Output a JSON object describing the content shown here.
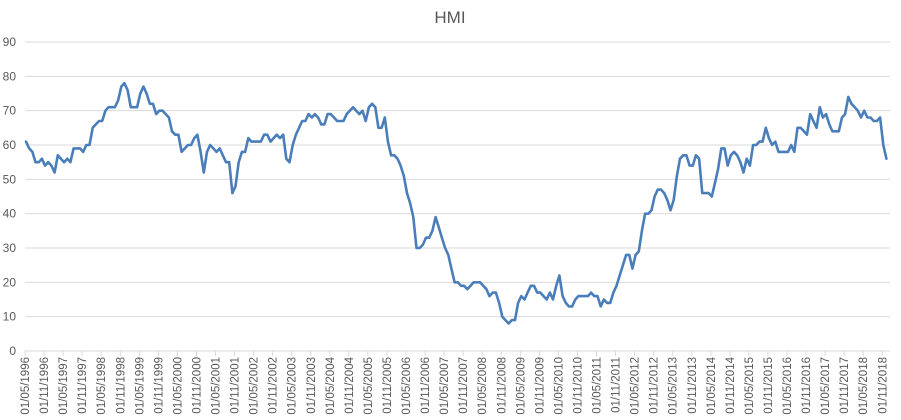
{
  "chart_data": {
    "type": "line",
    "title": "HMI",
    "xlabel": "",
    "ylabel": "",
    "ylim": [
      0,
      90
    ],
    "y_ticks": [
      0,
      10,
      20,
      30,
      40,
      50,
      60,
      70,
      80,
      90
    ],
    "grid": "horizontal",
    "legend": "none",
    "x_interval": "month",
    "x_tick_step_months": 6,
    "x_tick_labels": [
      "01/05/1996",
      "01/11/1996",
      "01/05/1997",
      "01/11/1997",
      "01/05/1998",
      "01/11/1998",
      "01/05/1999",
      "01/11/1999",
      "01/05/2000",
      "01/11/2000",
      "01/05/2001",
      "01/11/2001",
      "01/05/2002",
      "01/11/2002",
      "01/05/2003",
      "01/11/2003",
      "01/05/2004",
      "01/11/2004",
      "01/05/2005",
      "01/11/2005",
      "01/05/2006",
      "01/11/2006",
      "01/05/2007",
      "01/11/2007",
      "01/05/2008",
      "01/11/2008",
      "01/05/2009",
      "01/11/2009",
      "01/05/2010",
      "01/11/2010",
      "01/05/2011",
      "01/11/2011",
      "01/05/2012",
      "01/11/2012",
      "01/05/2013",
      "01/11/2013",
      "01/05/2014",
      "01/11/2014",
      "01/05/2015",
      "01/11/2015",
      "01/05/2016",
      "01/11/2016",
      "01/05/2017",
      "01/11/2017",
      "01/05/2018",
      "01/11/2018"
    ],
    "series": [
      {
        "color": "#4a7ebb",
        "values": [
          61,
          59,
          58,
          55,
          55,
          56,
          54,
          55,
          54,
          52,
          57,
          56,
          55,
          56,
          55,
          59,
          59,
          59,
          58,
          60,
          60,
          65,
          66,
          67,
          67,
          70,
          71,
          71,
          71,
          73,
          77,
          78,
          76,
          71,
          71,
          71,
          75,
          77,
          75,
          72,
          72,
          69,
          70,
          70,
          69,
          68,
          64,
          63,
          63,
          58,
          59,
          60,
          60,
          62,
          63,
          58,
          52,
          58,
          60,
          59,
          58,
          59,
          57,
          55,
          55,
          46,
          48,
          55,
          58,
          58,
          62,
          61,
          61,
          61,
          61,
          63,
          63,
          61,
          62,
          63,
          62,
          63,
          56,
          55,
          60,
          63,
          65,
          67,
          67,
          69,
          68,
          69,
          68,
          66,
          66,
          69,
          69,
          68,
          67,
          67,
          67,
          69,
          70,
          71,
          70,
          69,
          70,
          67,
          71,
          72,
          71,
          65,
          65,
          68,
          61,
          57,
          57,
          56,
          54,
          51,
          46,
          43,
          39,
          30,
          30,
          31,
          33,
          33,
          35,
          39,
          36,
          33,
          30,
          28,
          24,
          20,
          20,
          19,
          19,
          18,
          19,
          20,
          20,
          20,
          19,
          18,
          16,
          17,
          17,
          14,
          10,
          9,
          8,
          9,
          9,
          14,
          16,
          15,
          17,
          19,
          19,
          17,
          17,
          16,
          15,
          17,
          15,
          19,
          22,
          16,
          14,
          13,
          13,
          15,
          16,
          16,
          16,
          16,
          17,
          16,
          16,
          13,
          15,
          14,
          14,
          17,
          19,
          22,
          25,
          28,
          28,
          24,
          28,
          29,
          35,
          40,
          40,
          41,
          45,
          47,
          47,
          46,
          44,
          41,
          44,
          51,
          56,
          57,
          57,
          54,
          54,
          57,
          56,
          46,
          46,
          46,
          45,
          49,
          53,
          59,
          59,
          54,
          57,
          58,
          57,
          55,
          52,
          56,
          54,
          60,
          60,
          61,
          61,
          65,
          62,
          60,
          61,
          58,
          58,
          58,
          58,
          60,
          58,
          65,
          65,
          64,
          63,
          69,
          67,
          65,
          71,
          68,
          69,
          66,
          64,
          64,
          64,
          68,
          69,
          74,
          72,
          71,
          70,
          68,
          70,
          68,
          68,
          67,
          67,
          68,
          60,
          56
        ]
      }
    ],
    "colors": {
      "line": "#4a7ebb",
      "grid": "#d9d9d9",
      "text": "#595959"
    }
  }
}
